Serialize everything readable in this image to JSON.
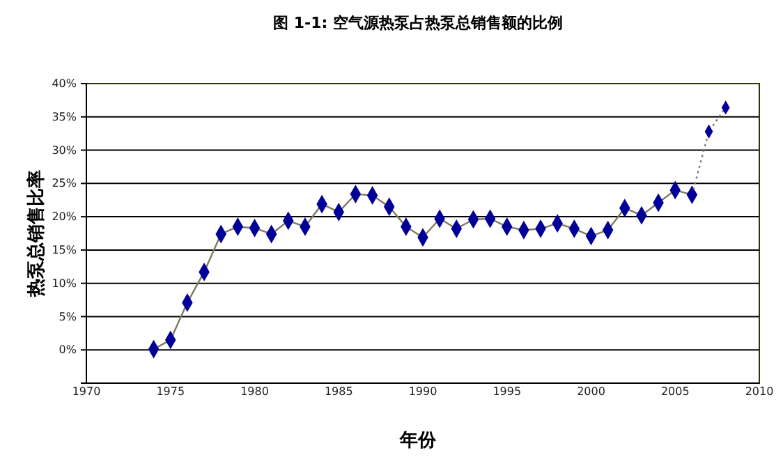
{
  "chart_data": {
    "type": "line",
    "title": "图  1-1: 空气源热泵占热泵总销售额的比例",
    "xlabel": "年份",
    "ylabel": "热泵总销售比率",
    "xlim": [
      1970,
      2010
    ],
    "xticks": [
      1970,
      1975,
      1980,
      1985,
      1990,
      1995,
      2000,
      2005,
      2010
    ],
    "ylim": [
      -5,
      40
    ],
    "yticks": [
      {
        "value": -5,
        "label": null
      },
      {
        "value": 0,
        "label": "0%"
      },
      {
        "value": 5,
        "label": "5%"
      },
      {
        "value": 10,
        "label": "10%"
      },
      {
        "value": 15,
        "label": "15%"
      },
      {
        "value": 20,
        "label": "20%"
      },
      {
        "value": 25,
        "label": "25%"
      },
      {
        "value": 30,
        "label": "30%"
      },
      {
        "value": 35,
        "label": "35%"
      },
      {
        "value": 40,
        "label": "40%"
      }
    ],
    "grid": "y",
    "marker": "diamond",
    "series": [
      {
        "color": "#000099",
        "line_style": "solid",
        "x": [
          1974,
          1975,
          1976,
          1977,
          1978,
          1979,
          1980,
          1981,
          1982,
          1983,
          1984,
          1985,
          1986,
          1987,
          1988,
          1989,
          1990,
          1991,
          1992,
          1993,
          1994,
          1995,
          1996,
          1997,
          1998,
          1999,
          2000,
          2001,
          2002,
          2003,
          2004,
          2005,
          2006
        ],
        "values": [
          0.1,
          1.5,
          7.1,
          11.7,
          17.4,
          18.5,
          18.3,
          17.4,
          19.4,
          18.5,
          21.9,
          20.7,
          23.4,
          23.2,
          21.5,
          18.5,
          16.9,
          19.7,
          18.2,
          19.6,
          19.7,
          18.5,
          18.0,
          18.2,
          19.0,
          18.2,
          17.1,
          18.0,
          21.3,
          20.2,
          22.1,
          24.0,
          23.3
        ]
      },
      {
        "color": "#000099",
        "line_style": "dotted",
        "x": [
          2006,
          2007,
          2008
        ],
        "values": [
          23.3,
          32.8,
          36.4
        ]
      }
    ]
  }
}
